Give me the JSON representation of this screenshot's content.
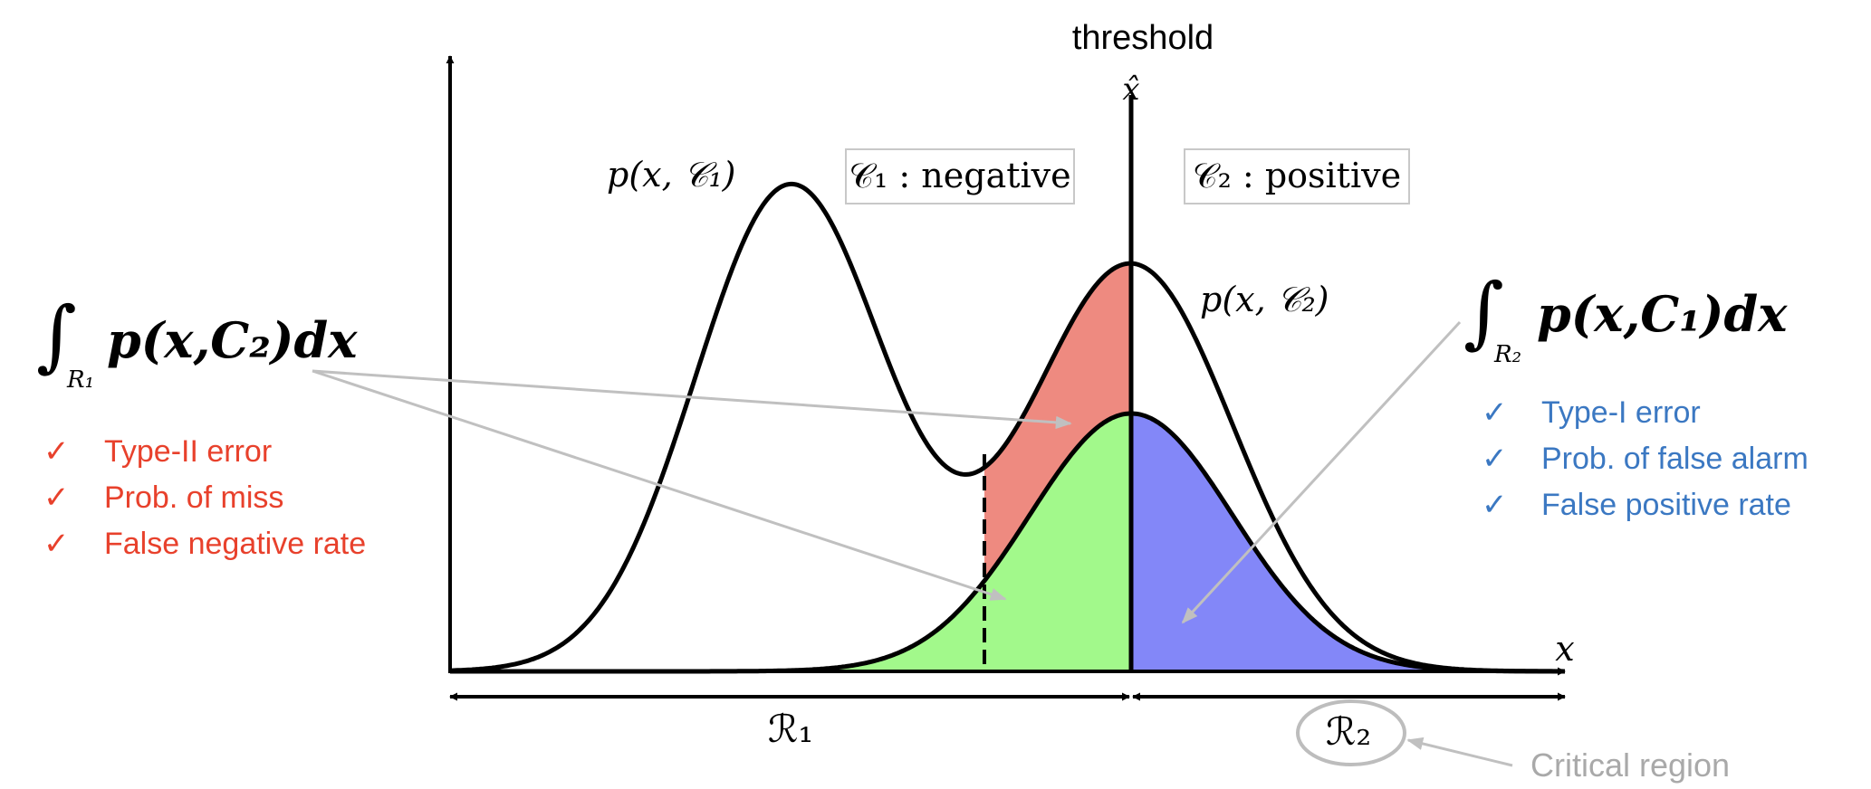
{
  "threshold": {
    "label": "threshold",
    "symbol": "x̂"
  },
  "axis": {
    "x_label": "x"
  },
  "curves": {
    "c1_label": "p(x, 𝒞₁)",
    "c2_label": "p(x, 𝒞₂)"
  },
  "classes": {
    "negative": "𝒞₁ : negative",
    "positive": "𝒞₂ : positive"
  },
  "regions": {
    "r1": "ℛ₁",
    "r2": "ℛ₂"
  },
  "left_panel": {
    "integral_sign": "∫",
    "integral_sub": "R₁",
    "integrand": "p(x,C₂)dx",
    "items": [
      "Type-II error",
      "Prob. of miss",
      "False negative rate"
    ],
    "check": "✓"
  },
  "right_panel": {
    "integral_sign": "∫",
    "integral_sub": "R₂",
    "integrand": "p(x,C₁)dx",
    "items": [
      "Type-I error",
      "Prob. of false alarm",
      "False positive rate"
    ],
    "check": "✓"
  },
  "critical_region": {
    "label": "Critical region"
  },
  "colors": {
    "red_area": "#ee8a80",
    "green_area": "#a2f98b",
    "blue_area": "#8387f8",
    "left_text": "#e8412c",
    "right_text": "#3b78c2",
    "gray": "#a9a9a9"
  }
}
